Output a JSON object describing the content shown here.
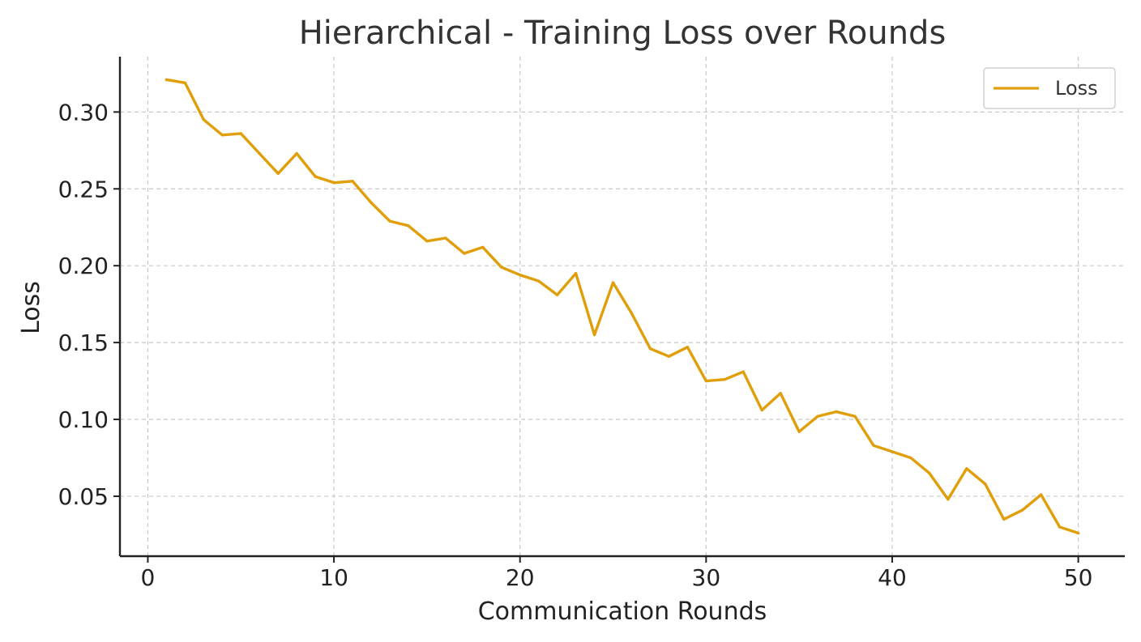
{
  "chart_data": {
    "type": "line",
    "title": "Hierarchical - Training Loss over Rounds",
    "xlabel": "Communication Rounds",
    "ylabel": "Loss",
    "xlim": [
      -1.5,
      52.5
    ],
    "ylim": [
      0.011,
      0.336
    ],
    "xticks": [
      0,
      10,
      20,
      30,
      40,
      50
    ],
    "yticks": [
      0.05,
      0.1,
      0.15,
      0.2,
      0.25,
      0.3
    ],
    "xtick_labels": [
      "0",
      "10",
      "20",
      "30",
      "40",
      "50"
    ],
    "ytick_labels": [
      "0.05",
      "0.10",
      "0.15",
      "0.20",
      "0.25",
      "0.30"
    ],
    "grid": true,
    "legend": {
      "position": "top-right",
      "entries": [
        "Loss"
      ]
    },
    "colors": {
      "Loss": "#E09F0A"
    },
    "x": [
      1,
      2,
      3,
      4,
      5,
      6,
      7,
      8,
      9,
      10,
      11,
      12,
      13,
      14,
      15,
      16,
      17,
      18,
      19,
      20,
      21,
      22,
      23,
      24,
      25,
      26,
      27,
      28,
      29,
      30,
      31,
      32,
      33,
      34,
      35,
      36,
      37,
      38,
      39,
      40,
      41,
      42,
      43,
      44,
      45,
      46,
      47,
      48,
      49,
      50
    ],
    "series": [
      {
        "name": "Loss",
        "values": [
          0.321,
          0.319,
          0.295,
          0.285,
          0.286,
          0.273,
          0.26,
          0.273,
          0.258,
          0.254,
          0.255,
          0.241,
          0.229,
          0.226,
          0.216,
          0.218,
          0.208,
          0.212,
          0.199,
          0.194,
          0.19,
          0.181,
          0.195,
          0.155,
          0.189,
          0.169,
          0.146,
          0.141,
          0.147,
          0.125,
          0.126,
          0.131,
          0.106,
          0.117,
          0.092,
          0.102,
          0.105,
          0.102,
          0.083,
          0.079,
          0.075,
          0.065,
          0.048,
          0.068,
          0.058,
          0.035,
          0.041,
          0.051,
          0.03,
          0.026
        ]
      }
    ]
  }
}
